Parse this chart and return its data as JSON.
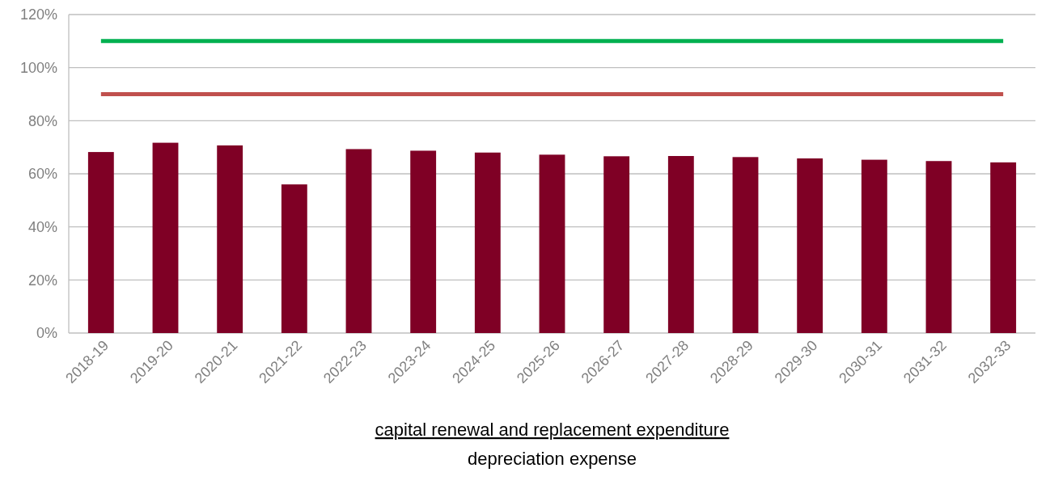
{
  "chart_data": {
    "type": "bar",
    "xlabel": "capital renewal and replacement expenditure\ndepreciation expense",
    "categories": [
      "2018-19",
      "2019-20",
      "2020-21",
      "2021-22",
      "2022-23",
      "2023-24",
      "2024-25",
      "2025-26",
      "2026-27",
      "2027-28",
      "2028-29",
      "2029-30",
      "2030-31",
      "2031-32",
      "2032-33"
    ],
    "values": [
      68.2,
      71.7,
      70.7,
      56.0,
      69.3,
      68.7,
      68.0,
      67.2,
      66.6,
      66.7,
      66.3,
      65.8,
      65.3,
      64.8,
      64.3
    ],
    "color": "#7f0025",
    "ylim": [
      0,
      120
    ],
    "yticks": [
      {
        "value": 0,
        "label": "0%"
      },
      {
        "value": 20,
        "label": "20%"
      },
      {
        "value": 40,
        "label": "40%"
      },
      {
        "value": 60,
        "label": "60%"
      },
      {
        "value": 80,
        "label": "80%"
      },
      {
        "value": 100,
        "label": "100%"
      },
      {
        "value": 120,
        "label": "120%"
      }
    ],
    "grid": "y",
    "ref_lines": [
      {
        "axis": "y",
        "value": 110,
        "color": "#00b050"
      },
      {
        "axis": "y",
        "value": 90,
        "color": "#c0504d"
      }
    ]
  }
}
